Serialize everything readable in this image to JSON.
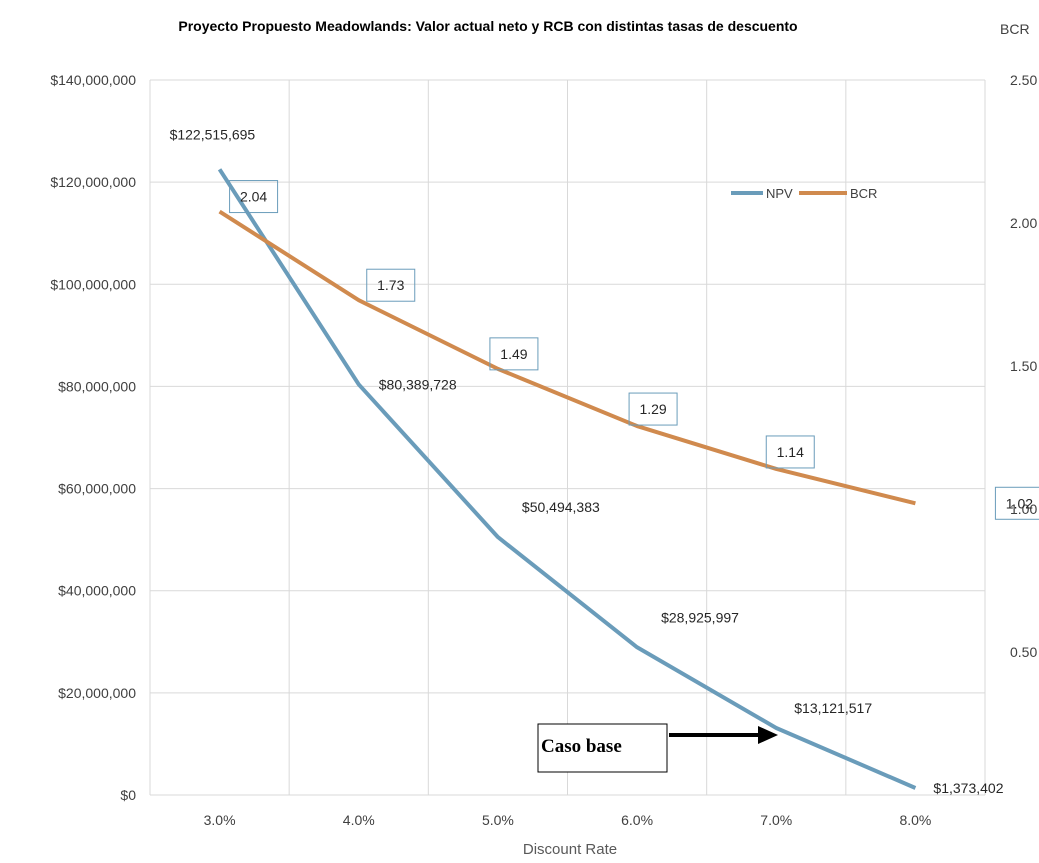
{
  "chart_data": {
    "type": "line",
    "title": "Proyecto Propuesto Meadowlands: Valor actual neto y RCB con distintas tasas de descuento",
    "xlabel": "Discount Rate",
    "ylabel": "",
    "y2label": "BCR",
    "categories": [
      "3.0%",
      "4.0%",
      "5.0%",
      "6.0%",
      "7.0%",
      "8.0%"
    ],
    "ylim": [
      0,
      140000000
    ],
    "y_ticks": [
      "$0",
      "$20,000,000",
      "$40,000,000",
      "$60,000,000",
      "$80,000,000",
      "$100,000,000",
      "$120,000,000",
      "$140,000,000"
    ],
    "y2lim": [
      0,
      2.5
    ],
    "y2_ticks": [
      "0.50",
      "1.00",
      "1.50",
      "2.00",
      "2.50"
    ],
    "grid": true,
    "legend_position": "top-right",
    "series": [
      {
        "name": "NPV",
        "axis": "left",
        "color": "#6a9cba",
        "values": [
          122515695,
          80389728,
          50494383,
          28925997,
          13121517,
          1373402
        ],
        "labels": [
          "$122,515,695",
          "$80,389,728",
          "$50,494,383",
          "$28,925,997",
          "$13,121,517",
          "$1,373,402"
        ]
      },
      {
        "name": "BCR",
        "axis": "right",
        "color": "#d08a4e",
        "values": [
          2.04,
          1.73,
          1.49,
          1.29,
          1.14,
          1.02
        ],
        "labels": [
          "2.04",
          "1.73",
          "1.49",
          "1.29",
          "1.14",
          "1.02"
        ]
      }
    ],
    "annotation": {
      "text": "Caso base",
      "target_category": "7.0%"
    }
  }
}
